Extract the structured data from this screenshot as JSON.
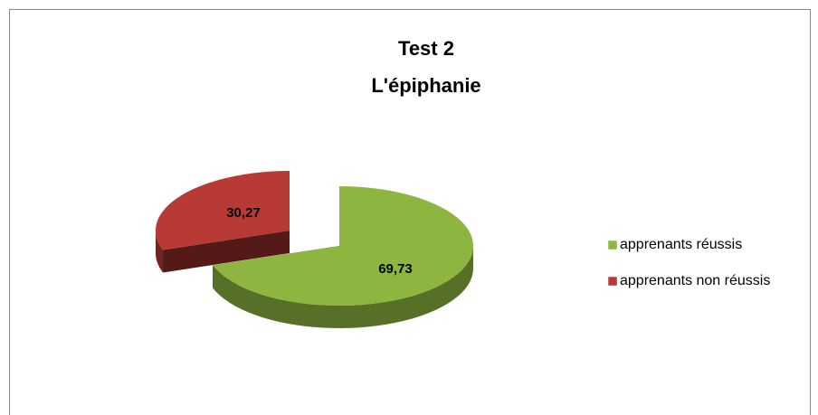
{
  "chart_data": {
    "type": "pie",
    "title": "Test 2",
    "subtitle": "L'épiphanie",
    "categories": [
      "apprenants réussis",
      "apprenants non réussis"
    ],
    "values": [
      69.73,
      30.27
    ],
    "value_labels": [
      "69,73",
      "30,27"
    ],
    "colors": [
      "#8db53f",
      "#b83a36"
    ],
    "legend": "right"
  }
}
